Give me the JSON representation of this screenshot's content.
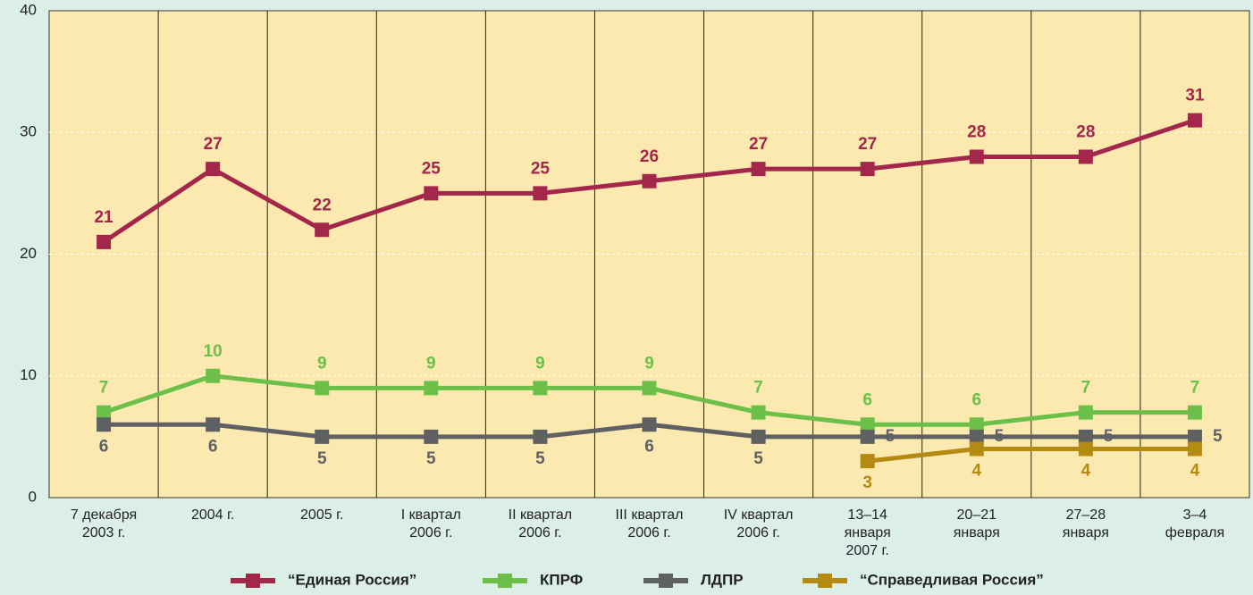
{
  "chart_data": {
    "type": "line",
    "categories": [
      "7 декабря\n2003 г.",
      "2004 г.",
      "2005 г.",
      "I квартал\n2006 г.",
      "II квартал\n2006 г.",
      "III квартал\n2006 г.",
      "IV квартал\n2006 г.",
      "13–14\nянваря\n2007 г.",
      "20–21\nянваря",
      "27–28\nянваря",
      "3–4\nфевраля"
    ],
    "series": [
      {
        "name": "“Единая Россия”",
        "color": "#a3264b",
        "values": [
          21,
          27,
          22,
          25,
          25,
          26,
          27,
          27,
          28,
          28,
          31
        ]
      },
      {
        "name": "КПРФ",
        "color": "#6cc04a",
        "values": [
          7,
          10,
          9,
          9,
          9,
          9,
          7,
          6,
          6,
          7,
          7
        ]
      },
      {
        "name": "ЛДПР",
        "color": "#5f6062",
        "values": [
          6,
          6,
          5,
          5,
          5,
          6,
          5,
          5,
          5,
          5,
          5
        ]
      },
      {
        "name": "“Справедливая Россия”",
        "color": "#b58a12",
        "values": [
          null,
          null,
          null,
          null,
          null,
          null,
          null,
          3,
          4,
          4,
          4
        ]
      }
    ],
    "ylim": [
      0,
      40
    ],
    "yticks": [
      0,
      10,
      20,
      30,
      40
    ],
    "grid": true,
    "legend": "bottom"
  }
}
